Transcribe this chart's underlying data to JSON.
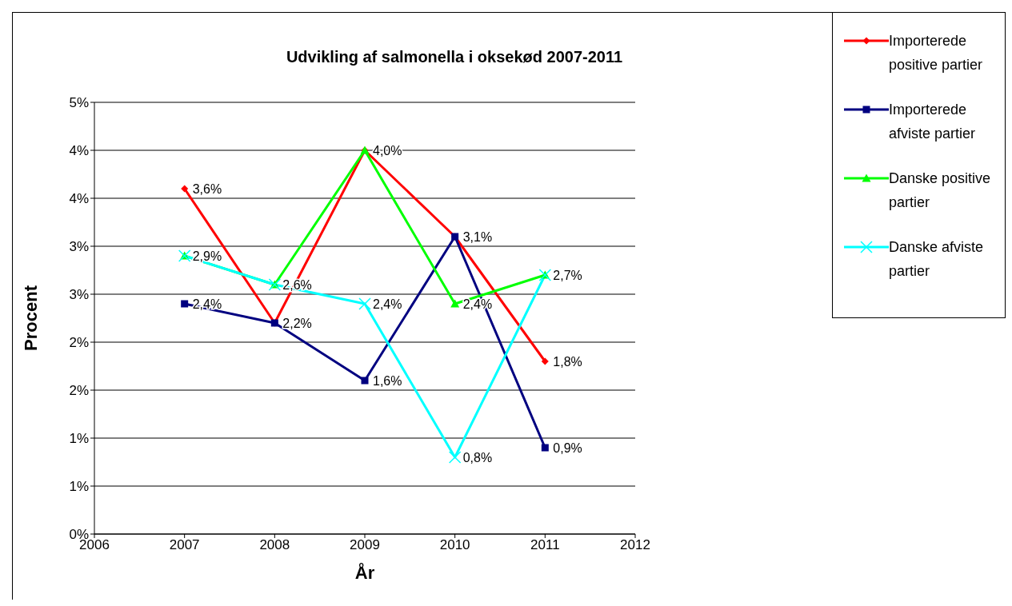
{
  "chart_data": {
    "type": "line",
    "title": "Udvikling af salmonella i oksekød 2007-2011",
    "xlabel": "År",
    "ylabel": "Procent",
    "x": [
      2007,
      2008,
      2009,
      2010,
      2011
    ],
    "series": [
      {
        "name": "Importerede positive partier",
        "color": "#ff0000",
        "marker": "diamond",
        "values": [
          3.6,
          2.2,
          4.0,
          3.1,
          1.8
        ],
        "value_labels": [
          "3,6%",
          null,
          null,
          null,
          "1,8%"
        ]
      },
      {
        "name": "Importerede afviste partier",
        "color": "#000080",
        "marker": "square",
        "values": [
          2.4,
          2.2,
          1.6,
          3.1,
          0.9
        ],
        "value_labels": [
          "2,4%",
          "2,2%",
          "1,6%",
          "3,1%",
          "0,9%"
        ]
      },
      {
        "name": "Danske positive partier",
        "color": "#00ff00",
        "marker": "triangle",
        "values": [
          2.9,
          2.6,
          4.0,
          2.4,
          2.7
        ],
        "value_labels": [
          null,
          null,
          "4,0%",
          "2,4%",
          null
        ]
      },
      {
        "name": "Danske afviste partier",
        "color": "#00ffff",
        "marker": "cross",
        "values": [
          2.9,
          2.6,
          2.4,
          0.8,
          2.7
        ],
        "value_labels": [
          "2,9%",
          "2,6%",
          "2,4%",
          "0,8%",
          "2,7%"
        ]
      }
    ],
    "xlim": [
      2006,
      2012
    ],
    "xticks": [
      2006,
      2007,
      2008,
      2009,
      2010,
      2011,
      2012
    ],
    "ylim": [
      0,
      4.5
    ],
    "yticks": [
      {
        "value": 0,
        "label": "0%"
      },
      {
        "value": 0.5,
        "label": "1%"
      },
      {
        "value": 1,
        "label": "1%"
      },
      {
        "value": 1.5,
        "label": "2%"
      },
      {
        "value": 2,
        "label": "2%"
      },
      {
        "value": 2.5,
        "label": "3%"
      },
      {
        "value": 3,
        "label": "3%"
      },
      {
        "value": 3.5,
        "label": "4%"
      },
      {
        "value": 4,
        "label": "4%"
      },
      {
        "value": 4.5,
        "label": "5%"
      }
    ],
    "grid": "y",
    "legend": "top right",
    "line_style": "solid"
  }
}
